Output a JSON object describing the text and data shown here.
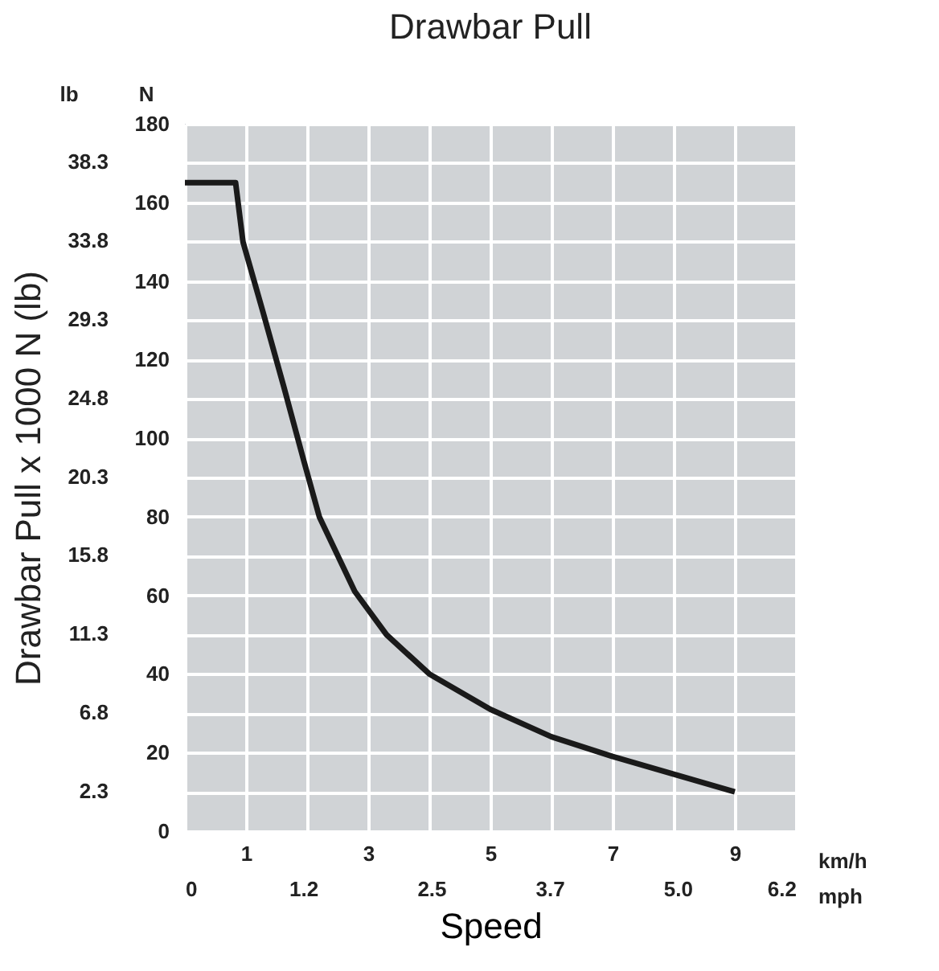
{
  "chart_data": {
    "type": "line",
    "title": "Drawbar Pull",
    "xlabel": "Speed",
    "y2label": "Drawbar Pull x 1000 N (lb)",
    "x": [
      0,
      0.83,
      0.95,
      1.28,
      1.62,
      1.95,
      2.2,
      2.78,
      3.3,
      4,
      5,
      6,
      7,
      8,
      9
    ],
    "series": [
      {
        "color": "#1a1a1a",
        "values": [
          165,
          165,
          150,
          132,
          113,
          94,
          80,
          61,
          50,
          40,
          31,
          24,
          19,
          14.5,
          10
        ]
      }
    ],
    "xlim": [
      0,
      10
    ],
    "xticks": [
      {
        "value": 0,
        "label": null
      },
      1,
      {
        "value": 2,
        "label": null
      },
      3,
      {
        "value": 4,
        "label": null
      },
      5,
      {
        "value": 6,
        "label": null
      },
      7,
      {
        "value": 8,
        "label": null
      },
      9,
      {
        "value": 10,
        "label": null
      }
    ],
    "x2lim": [
      0,
      6.2
    ],
    "x2ticks": [
      0,
      1.2,
      2.5,
      3.7,
      {
        "value": 5,
        "label": "5.0"
      },
      6.2
    ],
    "ylim": [
      0,
      180
    ],
    "yticks": [
      0,
      {
        "value": 10,
        "label": null
      },
      20,
      {
        "value": 30,
        "label": null
      },
      40,
      {
        "value": 50,
        "label": null
      },
      60,
      {
        "value": 70,
        "label": null
      },
      80,
      {
        "value": 90,
        "label": null
      },
      100,
      {
        "value": 110,
        "label": null
      },
      120,
      {
        "value": 130,
        "label": null
      },
      140,
      {
        "value": 150,
        "label": null
      },
      160,
      {
        "value": 170,
        "label": null
      },
      180
    ],
    "y2lim": [
      0,
      40.47
    ],
    "y2ticks": [
      2.3,
      6.8,
      11.3,
      15.8,
      20.3,
      24.8,
      29.3,
      33.8,
      38.3
    ],
    "grid": true,
    "marker": "none",
    "line_style": "solid",
    "annotations": [
      "lb",
      "N",
      "km/h",
      "mph"
    ]
  }
}
